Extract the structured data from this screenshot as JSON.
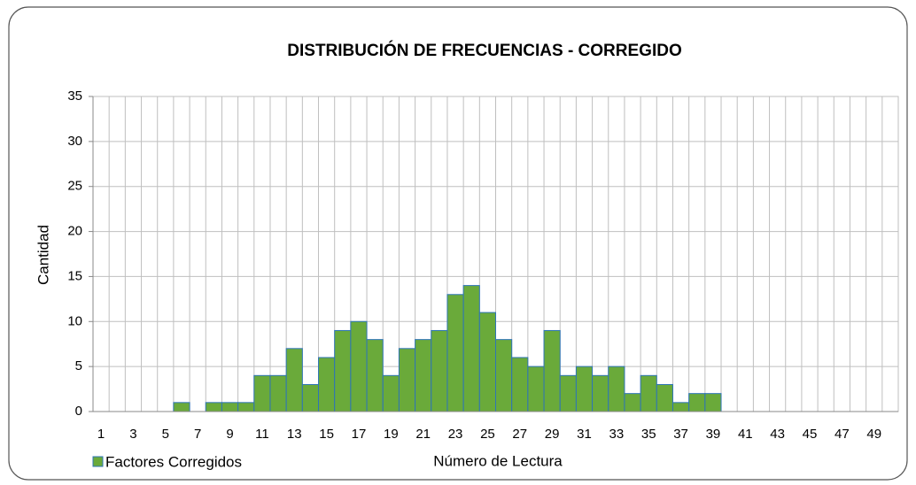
{
  "chart_data": {
    "type": "bar",
    "title": "DISTRIBUCIÓN  DE FRECUENCIAS - CORREGIDO",
    "x_label": "Número de Lectura",
    "y_label": "Cantidad",
    "categories": [
      1,
      null,
      3,
      null,
      5,
      null,
      7,
      null,
      9,
      null,
      11,
      null,
      13,
      null,
      15,
      null,
      17,
      null,
      19,
      null,
      21,
      null,
      23,
      null,
      25,
      null,
      27,
      null,
      29,
      null,
      31,
      null,
      33,
      null,
      35,
      null,
      37,
      null,
      39,
      null,
      41,
      null,
      43,
      null,
      45,
      null,
      47,
      null,
      49,
      null
    ],
    "series": [
      {
        "name": "Factores Corregidos",
        "color": "#6aaa3a",
        "values": [
          0,
          0,
          0,
          0,
          0,
          1,
          0,
          1,
          1,
          1,
          4,
          4,
          7,
          3,
          6,
          9,
          10,
          8,
          4,
          7,
          8,
          9,
          13,
          14,
          11,
          8,
          6,
          5,
          9,
          4,
          5,
          4,
          5,
          2,
          4,
          3,
          1,
          2,
          2,
          0,
          0,
          0,
          0,
          0,
          0,
          0,
          0,
          0,
          0,
          0
        ]
      }
    ],
    "ylim": [
      0,
      35
    ],
    "yticks": [
      0,
      5,
      10,
      15,
      20,
      25,
      30,
      35
    ],
    "grid": true,
    "legend": "bottom-left"
  }
}
